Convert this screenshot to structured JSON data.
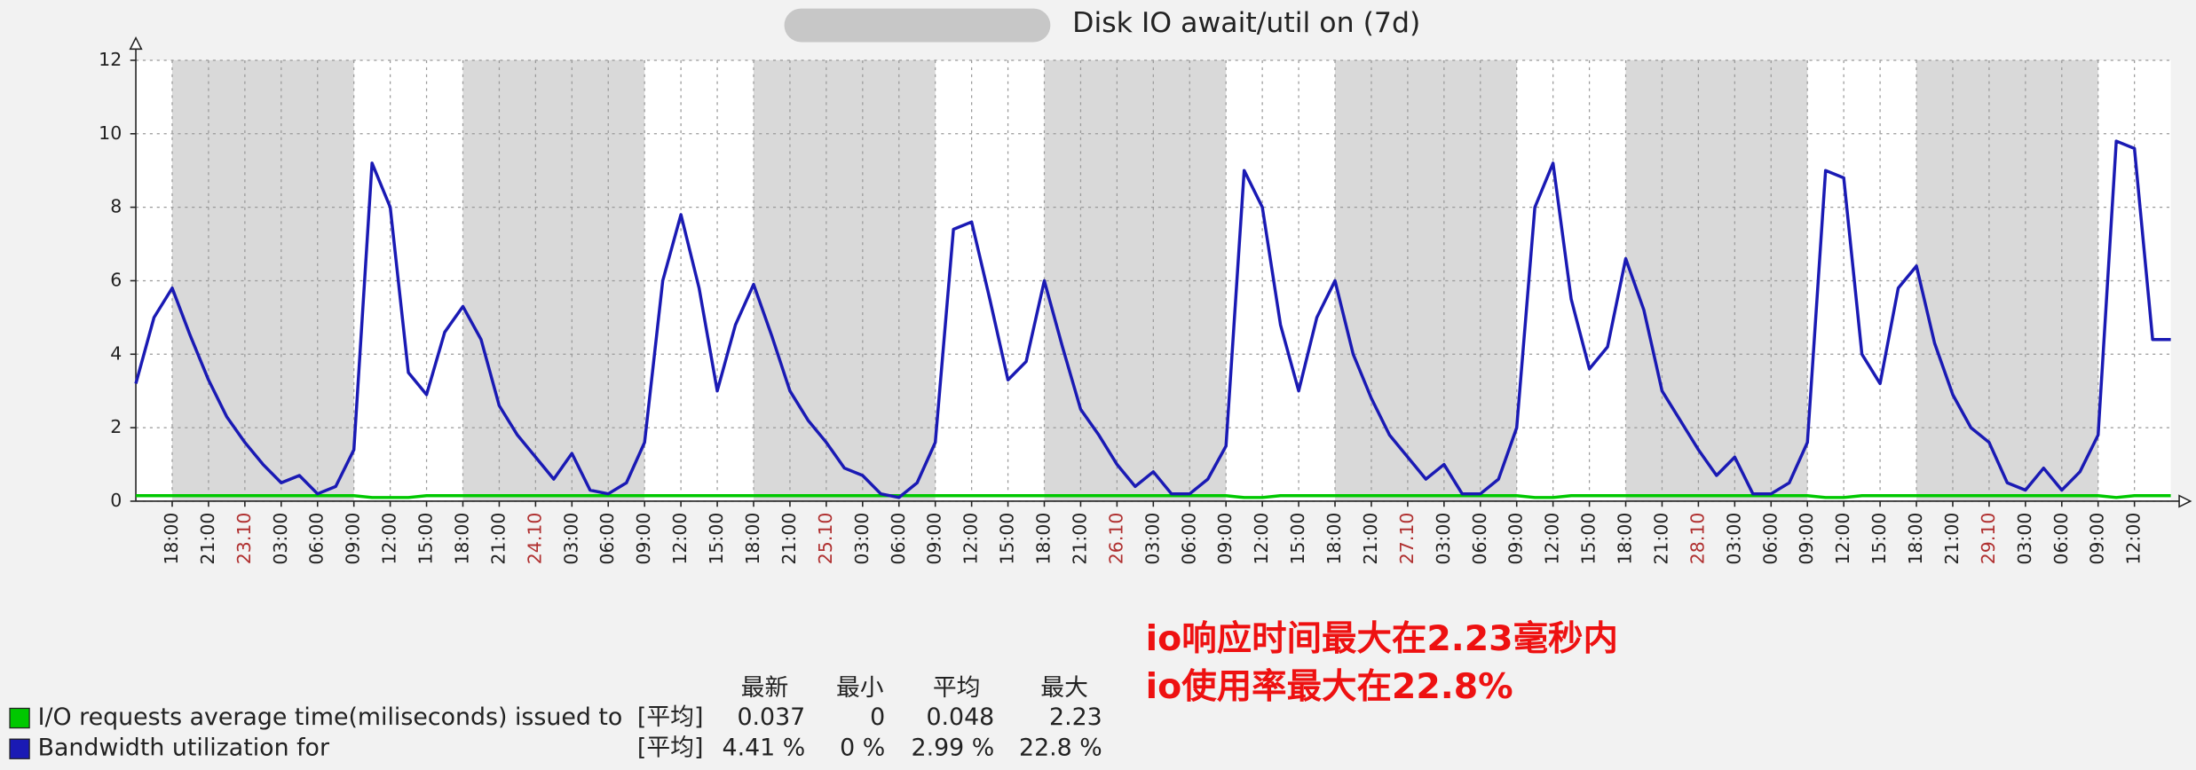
{
  "chart_data": {
    "type": "line",
    "title": "Disk IO await/util on (7d)",
    "ylim": [
      0,
      12
    ],
    "yticks": [
      0,
      2,
      4,
      6,
      8,
      10,
      12
    ],
    "grid": true,
    "categories": [
      null,
      null,
      "18:00",
      null,
      "21:00",
      null,
      "23.10",
      null,
      "03:00",
      null,
      "06:00",
      null,
      "09:00",
      null,
      "12:00",
      null,
      "15:00",
      null,
      "18:00",
      null,
      "21:00",
      null,
      "24.10",
      null,
      "03:00",
      null,
      "06:00",
      null,
      "09:00",
      null,
      "12:00",
      null,
      "15:00",
      null,
      "18:00",
      null,
      "21:00",
      null,
      "25.10",
      null,
      "03:00",
      null,
      "06:00",
      null,
      "09:00",
      null,
      "12:00",
      null,
      "15:00",
      null,
      "18:00",
      null,
      "21:00",
      null,
      "26.10",
      null,
      "03:00",
      null,
      "06:00",
      null,
      "09:00",
      null,
      "12:00",
      null,
      "15:00",
      null,
      "18:00",
      null,
      "21:00",
      null,
      "27.10",
      null,
      "03:00",
      null,
      "06:00",
      null,
      "09:00",
      null,
      "12:00",
      null,
      "15:00",
      null,
      "18:00",
      null,
      "21:00",
      null,
      "28.10",
      null,
      "03:00",
      null,
      "06:00",
      null,
      "09:00",
      null,
      "12:00",
      null,
      "15:00",
      null,
      "18:00",
      null,
      "21:00",
      null,
      "29.10",
      null,
      "03:00",
      null,
      "06:00",
      null,
      "09:00",
      null,
      "12:00",
      null,
      null
    ],
    "date_label_color": "#b03030",
    "series": [
      {
        "name": "I/O requests average time(miliseconds) issued to",
        "color": "#00c800",
        "values": [
          0.15,
          0.15,
          0.15,
          0.15,
          0.15,
          0.15,
          0.15,
          0.15,
          0.15,
          0.15,
          0.15,
          0.15,
          0.15,
          0.1,
          0.1,
          0.1,
          0.15,
          0.15,
          0.15,
          0.15,
          0.15,
          0.15,
          0.15,
          0.15,
          0.15,
          0.15,
          0.15,
          0.15,
          0.15,
          0.15,
          0.15,
          0.15,
          0.15,
          0.15,
          0.15,
          0.15,
          0.15,
          0.15,
          0.15,
          0.15,
          0.15,
          0.15,
          0.15,
          0.15,
          0.15,
          0.15,
          0.15,
          0.15,
          0.15,
          0.15,
          0.15,
          0.15,
          0.15,
          0.15,
          0.15,
          0.15,
          0.15,
          0.15,
          0.15,
          0.15,
          0.15,
          0.1,
          0.1,
          0.15,
          0.15,
          0.15,
          0.15,
          0.15,
          0.15,
          0.15,
          0.15,
          0.15,
          0.15,
          0.15,
          0.15,
          0.15,
          0.15,
          0.1,
          0.1,
          0.15,
          0.15,
          0.15,
          0.15,
          0.15,
          0.15,
          0.15,
          0.15,
          0.15,
          0.15,
          0.15,
          0.15,
          0.15,
          0.15,
          0.1,
          0.1,
          0.15,
          0.15,
          0.15,
          0.15,
          0.15,
          0.15,
          0.15,
          0.15,
          0.15,
          0.15,
          0.15,
          0.15,
          0.15,
          0.15,
          0.1,
          0.15,
          0.15,
          0.15
        ]
      },
      {
        "name": "Bandwidth utilization for",
        "color": "#1a1ab4",
        "values": [
          3.2,
          5.0,
          5.8,
          4.5,
          3.3,
          2.3,
          1.6,
          1.0,
          0.5,
          0.7,
          0.2,
          0.4,
          1.4,
          9.2,
          8.0,
          3.5,
          2.9,
          4.6,
          5.3,
          4.4,
          2.6,
          1.8,
          1.2,
          0.6,
          1.3,
          0.3,
          0.2,
          0.5,
          1.6,
          6.0,
          7.8,
          5.8,
          3.0,
          4.8,
          5.9,
          4.5,
          3.0,
          2.2,
          1.6,
          0.9,
          0.7,
          0.2,
          0.1,
          0.5,
          1.6,
          7.4,
          7.6,
          5.5,
          3.3,
          3.8,
          6.0,
          4.2,
          2.5,
          1.8,
          1.0,
          0.4,
          0.8,
          0.2,
          0.2,
          0.6,
          1.5,
          9.0,
          8.0,
          4.8,
          3.0,
          5.0,
          6.0,
          4.0,
          2.8,
          1.8,
          1.2,
          0.6,
          1.0,
          0.2,
          0.2,
          0.6,
          2.0,
          8.0,
          9.2,
          5.5,
          3.6,
          4.2,
          6.6,
          5.2,
          3.0,
          2.2,
          1.4,
          0.7,
          1.2,
          0.2,
          0.2,
          0.5,
          1.6,
          9.0,
          8.8,
          4.0,
          3.2,
          5.8,
          6.4,
          4.3,
          2.9,
          2.0,
          1.6,
          0.5,
          0.3,
          0.9,
          0.3,
          0.8,
          1.8,
          9.8,
          9.6,
          4.4,
          4.4
        ]
      }
    ],
    "legend_columns": [
      "最新",
      "最小",
      "平均",
      "最大"
    ],
    "legend_rows": [
      {
        "func": "[平均]",
        "stats": [
          "0.037",
          "0",
          "0.048",
          "2.23"
        ]
      },
      {
        "func": "[平均]",
        "stats": [
          "4.41 %",
          "0 %",
          "2.99 %",
          "22.8 %"
        ]
      }
    ],
    "annotations": [
      "io响应时间最大在2.23毫秒内",
      "io使用率最大在22.8%"
    ]
  }
}
